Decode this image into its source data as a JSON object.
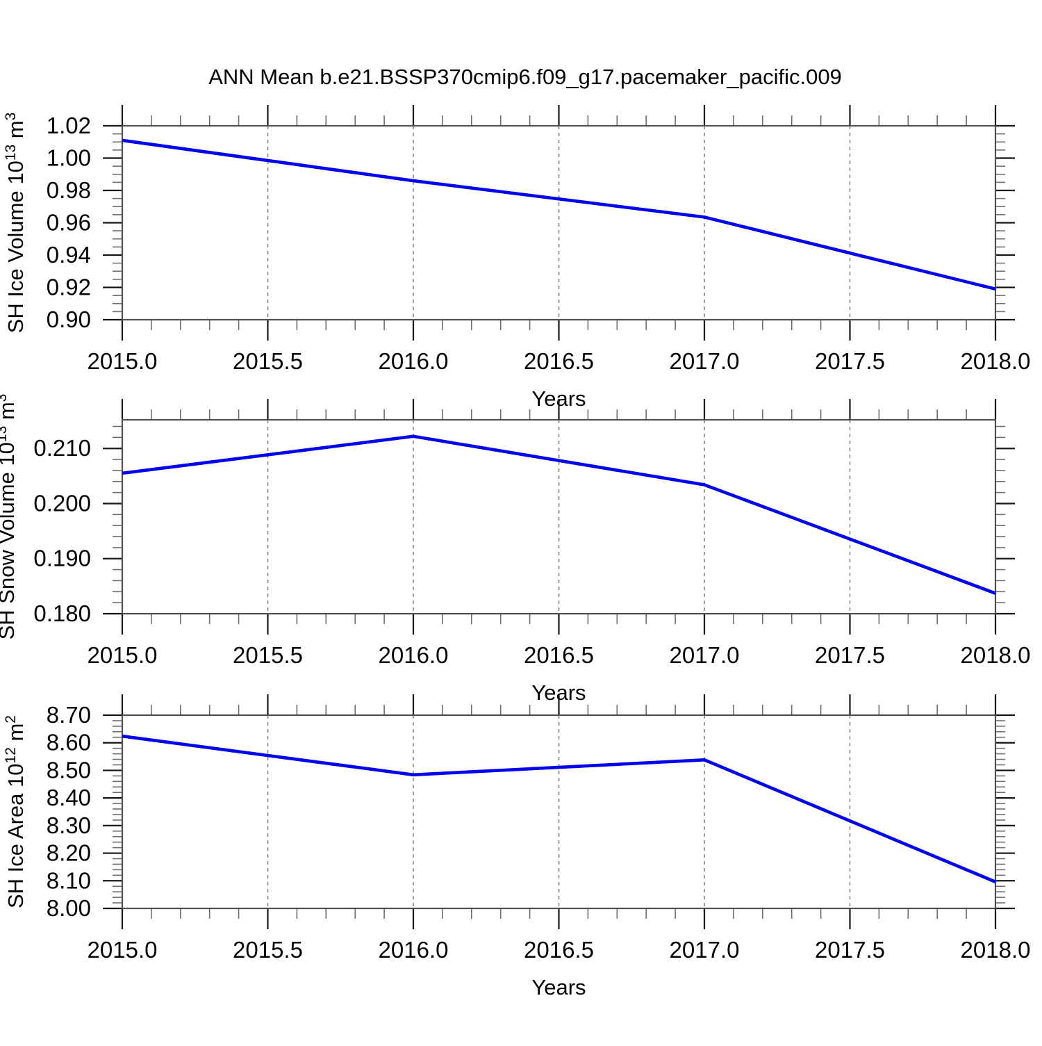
{
  "title": "ANN Mean b.e21.BSSP370cmip6.f09_g17.pacemaker_pacific.009",
  "colors": {
    "line": "#0000f2",
    "frame": "#4f4f4f",
    "major_tick": "#161616",
    "minor_tick": "#6e6e6e",
    "grid": "#8a8a8a",
    "text": "#000000",
    "background": "#ffffff"
  },
  "x_axis": {
    "label": "Years",
    "min": 2015.0,
    "max": 2018.0,
    "major_ticks": [
      2015.0,
      2015.5,
      2016.0,
      2016.5,
      2017.0,
      2017.5,
      2018.0
    ],
    "tick_labels": [
      "2015.0",
      "2015.5",
      "2016.0",
      "2016.5",
      "2017.0",
      "2017.5",
      "2018.0"
    ],
    "minor_step": 0.1,
    "gridlines": [
      2015.5,
      2016.0,
      2016.5,
      2017.0,
      2017.5
    ]
  },
  "chart_data": [
    {
      "type": "line",
      "name": "sh-ice-volume",
      "ylabel": "SH Ice Volume 10^13 m^3",
      "ylabel_parts": [
        {
          "t": "SH Ice Volume 10"
        },
        {
          "t": "13",
          "sup": true
        },
        {
          "t": " m"
        },
        {
          "t": "3",
          "sup": true
        }
      ],
      "xlabel": "Years",
      "x": [
        2015.0,
        2016.0,
        2017.0,
        2018.0
      ],
      "values": [
        1.011,
        0.986,
        0.9635,
        0.919
      ],
      "ylim": [
        0.9,
        1.02
      ],
      "y_major_ticks": [
        0.9,
        0.92,
        0.94,
        0.96,
        0.98,
        1.0,
        1.02
      ],
      "y_tick_labels": [
        "0.90",
        "0.92",
        "0.94",
        "0.96",
        "0.98",
        "1.00",
        "1.02"
      ],
      "y_minor_step": 0.005,
      "grid": "vertical-dashed",
      "legend": "none"
    },
    {
      "type": "line",
      "name": "sh-snow-volume",
      "ylabel": "SH Snow Volume 10^13 m^3",
      "ylabel_parts": [
        {
          "t": "SH Snow Volume 10"
        },
        {
          "t": "13",
          "sup": true
        },
        {
          "t": " m"
        },
        {
          "t": "3",
          "sup": true
        }
      ],
      "xlabel": "Years",
      "x": [
        2015.0,
        2016.0,
        2017.0,
        2018.0
      ],
      "values": [
        0.2055,
        0.2122,
        0.2034,
        0.1837
      ],
      "ylim": [
        0.18,
        0.2152
      ],
      "y_major_ticks": [
        0.18,
        0.19,
        0.2,
        0.21
      ],
      "y_tick_labels": [
        "0.180",
        "0.190",
        "0.200",
        "0.210"
      ],
      "y_minor_step": 0.002,
      "grid": "vertical-dashed",
      "legend": "none"
    },
    {
      "type": "line",
      "name": "sh-ice-area",
      "ylabel": "SH Ice Area 10^12 m^2",
      "ylabel_parts": [
        {
          "t": "SH Ice Area 10"
        },
        {
          "t": "12",
          "sup": true
        },
        {
          "t": " m"
        },
        {
          "t": "2",
          "sup": true
        }
      ],
      "xlabel": "Years",
      "x": [
        2015.0,
        2016.0,
        2017.0,
        2018.0
      ],
      "values": [
        8.624,
        8.484,
        8.538,
        8.096
      ],
      "ylim": [
        8.0,
        8.7
      ],
      "y_major_ticks": [
        8.0,
        8.1,
        8.2,
        8.3,
        8.4,
        8.5,
        8.6,
        8.7
      ],
      "y_tick_labels": [
        "8.00",
        "8.10",
        "8.20",
        "8.30",
        "8.40",
        "8.50",
        "8.60",
        "8.70"
      ],
      "y_minor_step": 0.02,
      "grid": "vertical-dashed",
      "legend": "none"
    }
  ]
}
